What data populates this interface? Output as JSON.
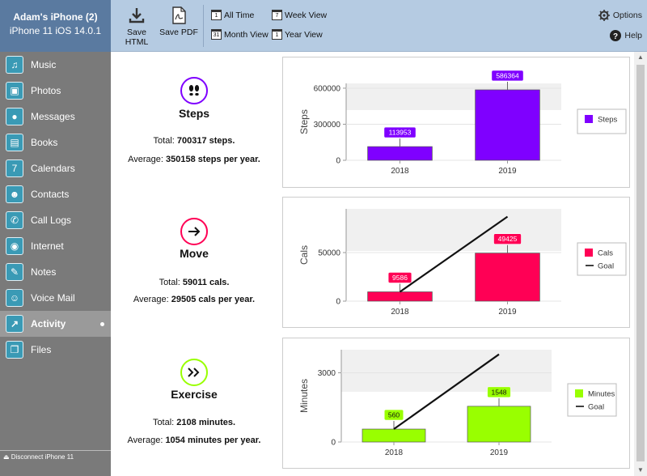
{
  "device": {
    "name": "Adam's iPhone (2)",
    "subtitle": "iPhone 11 iOS 14.0.1"
  },
  "toolbar": {
    "save_html": "Save HTML",
    "save_pdf": "Save PDF",
    "all_time": "All Time",
    "week_view": "Week View",
    "month_view": "Month View",
    "year_view": "Year View",
    "options": "Options",
    "help": "Help",
    "cal_all": "1",
    "cal_week": "7",
    "cal_month": "31",
    "cal_year": "1"
  },
  "sidebar": {
    "items": [
      {
        "label": "Music",
        "icon": "music-icon"
      },
      {
        "label": "Photos",
        "icon": "photos-icon"
      },
      {
        "label": "Messages",
        "icon": "messages-icon"
      },
      {
        "label": "Books",
        "icon": "books-icon"
      },
      {
        "label": "Calendars",
        "icon": "calendars-icon"
      },
      {
        "label": "Contacts",
        "icon": "contacts-icon"
      },
      {
        "label": "Call Logs",
        "icon": "call-logs-icon"
      },
      {
        "label": "Internet",
        "icon": "internet-icon"
      },
      {
        "label": "Notes",
        "icon": "notes-icon"
      },
      {
        "label": "Voice Mail",
        "icon": "voice-mail-icon"
      },
      {
        "label": "Activity",
        "icon": "activity-icon",
        "active": true
      },
      {
        "label": "Files",
        "icon": "files-icon"
      }
    ],
    "disconnect": "Disconnect iPhone 11"
  },
  "activity": {
    "steps": {
      "title": "Steps",
      "total_prefix": "Total: ",
      "total_value": "700317 steps.",
      "average_prefix": "Average: ",
      "average_value": "350158 steps per year.",
      "color": "#7f00ff"
    },
    "move": {
      "title": "Move",
      "total_prefix": "Total: ",
      "total_value": "59011 cals.",
      "average_prefix": "Average: ",
      "average_value": "29505 cals per year.",
      "color": "#ff0055"
    },
    "exercise": {
      "title": "Exercise",
      "total_prefix": "Total: ",
      "total_value": "2108 minutes.",
      "average_prefix": "Average: ",
      "average_value": "1054 minutes per year.",
      "color": "#99ff00"
    }
  },
  "chart_data": [
    {
      "type": "bar",
      "categories": [
        "2018",
        "2019"
      ],
      "series": [
        {
          "name": "Steps",
          "values": [
            113953,
            586364
          ],
          "color": "#7f00ff"
        }
      ],
      "ylabel": "Steps",
      "ylim": [
        0,
        640000
      ],
      "yticks": [
        0,
        300000,
        600000
      ],
      "legend": "right"
    },
    {
      "type": "bar",
      "categories": [
        "2018",
        "2019"
      ],
      "series": [
        {
          "name": "Cals",
          "values": [
            9586,
            49425
          ],
          "color": "#ff0055"
        },
        {
          "name": "Goal",
          "type": "line",
          "values": [
            9586,
            87000
          ],
          "color": "#111111"
        }
      ],
      "ylabel": "Cals",
      "ylim": [
        0,
        95000
      ],
      "yticks": [
        0,
        50000
      ],
      "legend": "right"
    },
    {
      "type": "bar",
      "categories": [
        "2018",
        "2019"
      ],
      "series": [
        {
          "name": "Minutes",
          "values": [
            560,
            1548
          ],
          "color": "#99ff00"
        },
        {
          "name": "Goal",
          "type": "line",
          "values": [
            560,
            3800
          ],
          "color": "#111111"
        }
      ],
      "ylabel": "Minutes",
      "ylim": [
        0,
        4000
      ],
      "yticks": [
        0,
        3000
      ],
      "legend": "right"
    }
  ]
}
